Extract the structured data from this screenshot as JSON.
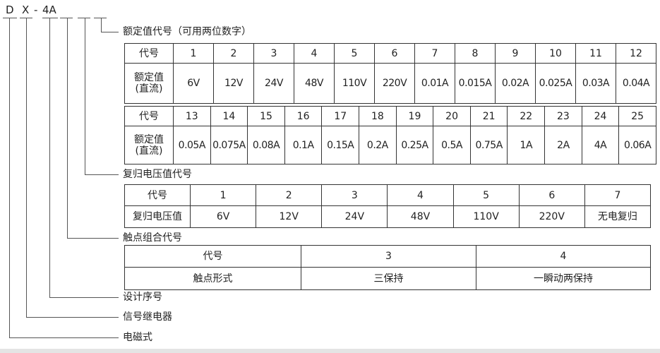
{
  "model_code": {
    "d": "D",
    "x": "X",
    "dash": "-",
    "series": "4A"
  },
  "rated": {
    "label": "额定值代号（可用两位数字）",
    "code_header": "代号",
    "value_header": "额定值\n(直流)",
    "row1": {
      "codes": [
        "1",
        "2",
        "3",
        "4",
        "5",
        "6",
        "7",
        "8",
        "9",
        "10",
        "11",
        "12"
      ],
      "values": [
        "6V",
        "12V",
        "24V",
        "48V",
        "110V",
        "220V",
        "0.01A",
        "0.015A",
        "0.02A",
        "0.025A",
        "0.03A",
        "0.04A"
      ]
    },
    "row2": {
      "codes": [
        "13",
        "14",
        "15",
        "16",
        "17",
        "18",
        "19",
        "20",
        "21",
        "22",
        "23",
        "24",
        "25"
      ],
      "values": [
        "0.05A",
        "0.075A",
        "0.08A",
        "0.1A",
        "0.15A",
        "0.2A",
        "0.25A",
        "0.5A",
        "0.75A",
        "1A",
        "2A",
        "4A",
        "0.06A"
      ]
    }
  },
  "reset": {
    "label": "复归电压值代号",
    "code_header": "代号",
    "value_header": "复归电压值",
    "codes": [
      "1",
      "2",
      "3",
      "4",
      "5",
      "6",
      "7"
    ],
    "values": [
      "6V",
      "12V",
      "24V",
      "48V",
      "110V",
      "220V",
      "无电复归"
    ]
  },
  "contact": {
    "label": "触点组合代号",
    "code_header": "代号",
    "value_header": "触点形式",
    "codes": [
      "3",
      "4"
    ],
    "values": [
      "三保持",
      "一瞬动两保持"
    ]
  },
  "design_label": "设计序号",
  "signal_label": "信号继电器",
  "electromagnetic_label": "电磁式"
}
